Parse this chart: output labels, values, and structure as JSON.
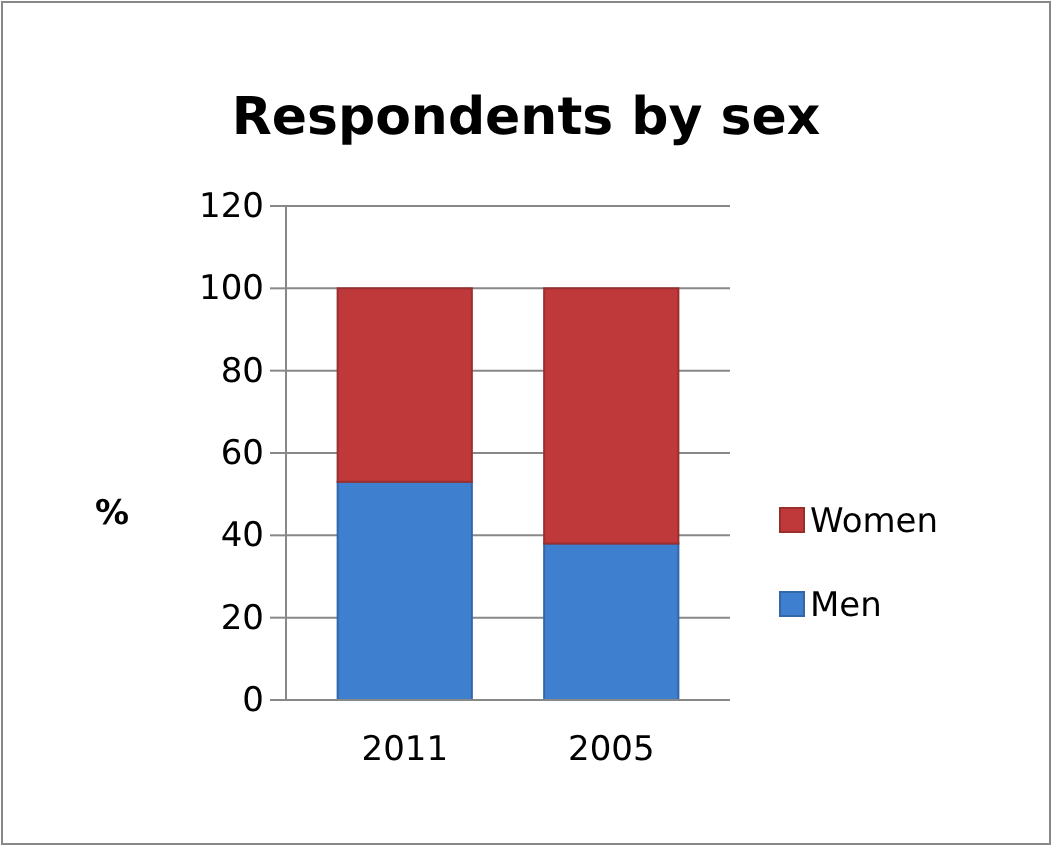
{
  "chart_data": {
    "type": "bar",
    "title": "Respondents by sex",
    "ylabel": "%",
    "categories": [
      "2011",
      "2005"
    ],
    "stacked": true,
    "series": [
      {
        "name": "Men",
        "color": "#3f7fd0",
        "values": [
          53,
          38
        ]
      },
      {
        "name": "Women",
        "color": "#c0393a",
        "values": [
          47,
          62
        ]
      }
    ],
    "ylim": [
      0,
      120
    ],
    "yticks": [
      0,
      20,
      40,
      60,
      80,
      100,
      120
    ],
    "grid": "y",
    "legend": "right"
  }
}
